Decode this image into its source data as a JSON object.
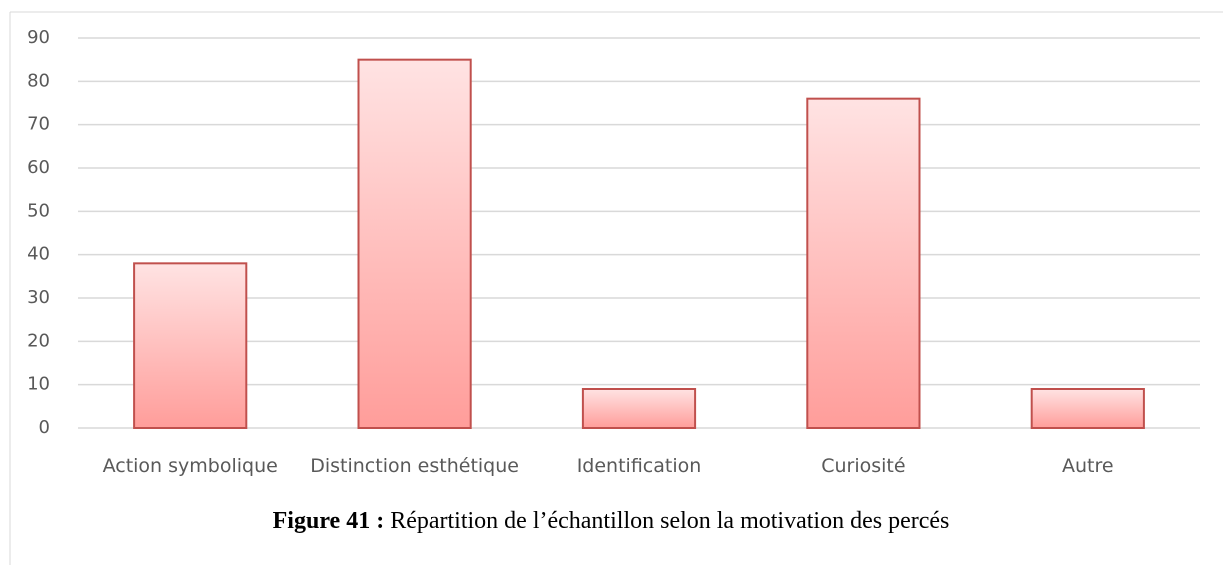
{
  "chart_data": {
    "type": "bar",
    "categories": [
      "Action symbolique",
      "Distinction esthétique",
      "Identification",
      "Curiosité",
      "Autre"
    ],
    "values": [
      38,
      85,
      9,
      76,
      9
    ],
    "color": "#c0504d",
    "ylim": [
      0,
      90
    ],
    "yticks": [
      0,
      10,
      20,
      30,
      40,
      50,
      60,
      70,
      80,
      90
    ],
    "grid": true,
    "caption": {
      "label": "Figure 41 :",
      "text": "Répartition de l’échantillon selon la motivation des percés"
    }
  }
}
